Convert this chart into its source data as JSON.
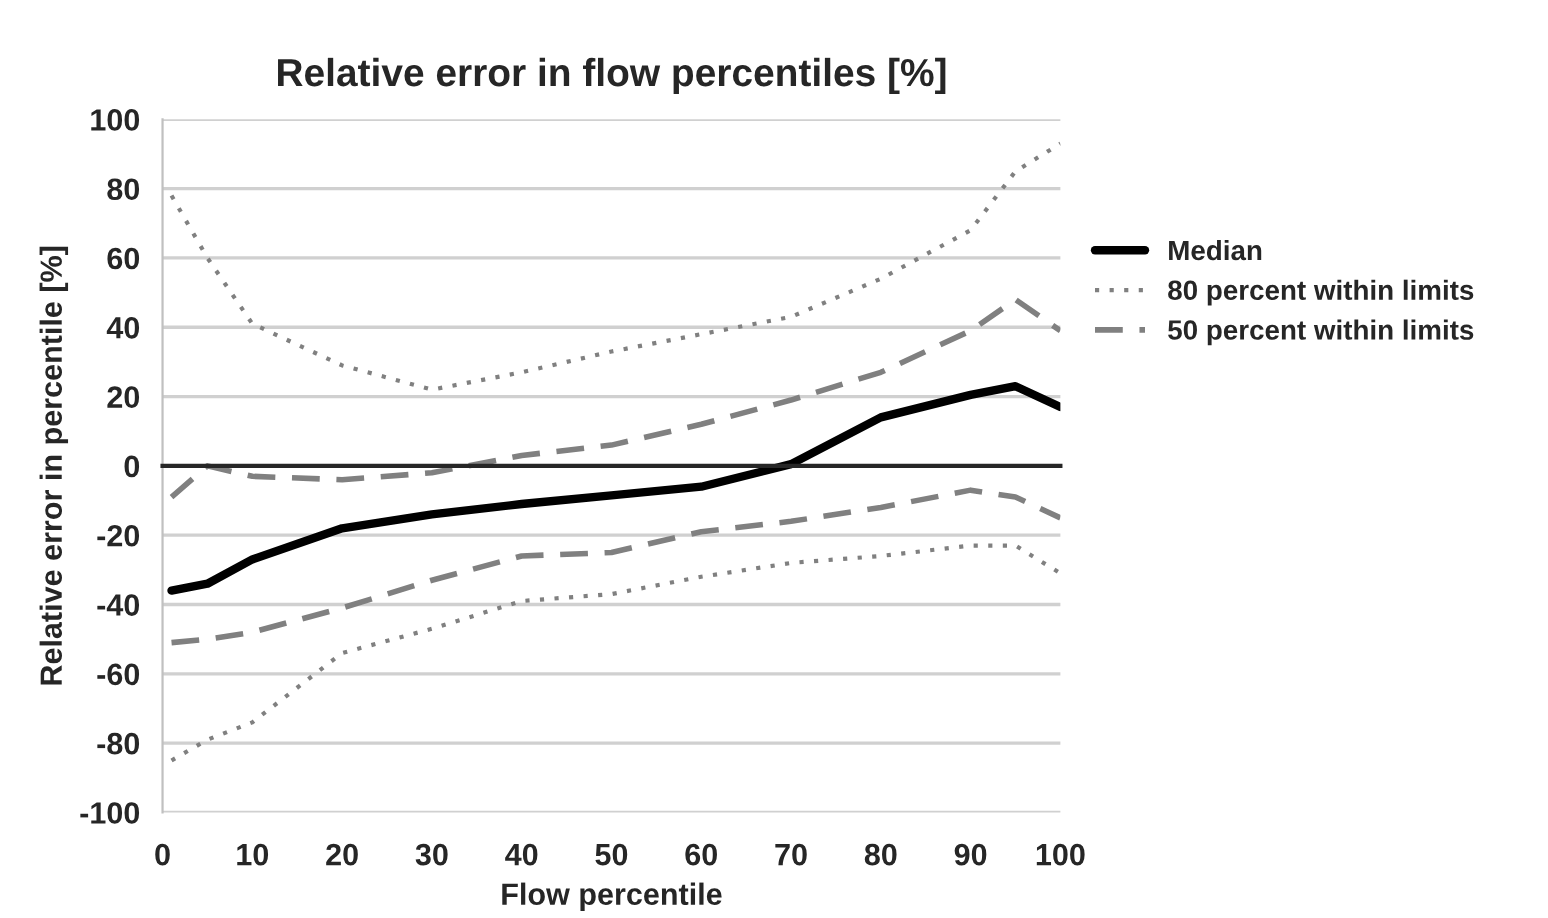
{
  "chart_data": {
    "type": "line",
    "title": "Relative error in flow percentiles [%]",
    "xlabel": "Flow percentile",
    "ylabel": "Relative error in percentile [%]",
    "x": [
      1,
      5,
      10,
      20,
      30,
      40,
      50,
      60,
      70,
      80,
      90,
      95,
      100
    ],
    "series": [
      {
        "name": "Median",
        "color": "#000000",
        "line_style": "solid",
        "values": [
          -36,
          -34,
          -27,
          -18,
          -14,
          -11,
          -8.5,
          -6,
          0.5,
          14,
          20.5,
          23,
          17
        ]
      },
      {
        "name": "80 percent within limits",
        "color": "#808080",
        "line_style": "dotted",
        "values": [
          78,
          60,
          41,
          29,
          22,
          27,
          33,
          38,
          43,
          54,
          68,
          85,
          93
        ]
      },
      {
        "name": "50 percent within limits",
        "color": "#808080",
        "line_style": "dashed",
        "values": [
          -9,
          0,
          -3,
          -4,
          -2,
          3,
          6,
          12,
          19,
          27,
          39,
          48,
          39
        ]
      },
      {
        "color": "#808080",
        "line_style": "dashed",
        "values": [
          -51,
          -50,
          -48,
          -41,
          -33,
          -26,
          -25,
          -19,
          -16,
          -12,
          -7,
          -9,
          -15
        ]
      },
      {
        "color": "#808080",
        "line_style": "dotted",
        "values": [
          -85,
          -79,
          -74,
          -54,
          -47,
          -39,
          -37,
          -32,
          -28,
          -26,
          -23,
          -23,
          -31
        ]
      }
    ],
    "xlim": [
      0,
      100
    ],
    "xticks": [
      0,
      10,
      20,
      30,
      40,
      50,
      60,
      70,
      80,
      90,
      100
    ],
    "ylim": [
      -100,
      100
    ],
    "yticks": [
      -100,
      -80,
      -60,
      -40,
      -20,
      0,
      20,
      40,
      60,
      80,
      100
    ],
    "grid": "y",
    "legend": "right"
  }
}
